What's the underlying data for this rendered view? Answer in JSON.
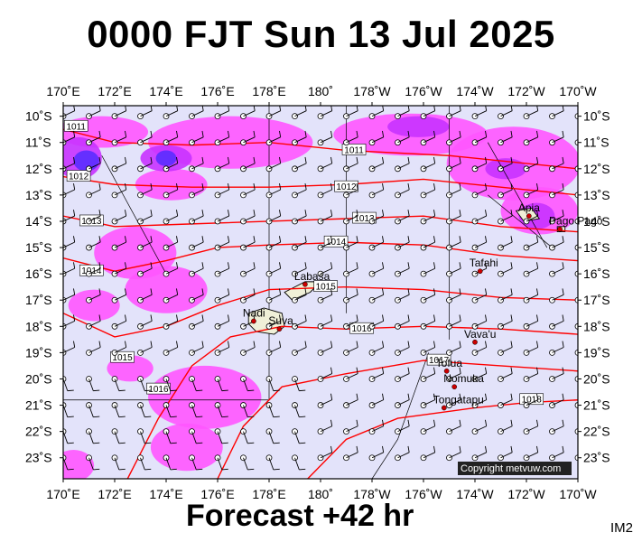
{
  "title": "0000 FJT Sun 13 Jul 2025",
  "footer": "Forecast +42 hr",
  "image_code": "IM2",
  "copyright": "Copyright metvuw.com",
  "axes": {
    "lon_labels": [
      "170˚E",
      "172˚E",
      "174˚E",
      "176˚E",
      "178˚E",
      "180˚",
      "178˚W",
      "176˚W",
      "174˚W",
      "172˚W",
      "170˚W"
    ],
    "lat_labels": [
      "10˚S",
      "11˚S",
      "12˚S",
      "13˚S",
      "14˚S",
      "15˚S",
      "16˚S",
      "17˚S",
      "18˚S",
      "19˚S",
      "20˚S",
      "21˚S",
      "22˚S",
      "23˚S"
    ]
  },
  "places": [
    {
      "name": "Apia",
      "lon": 188.1,
      "lat": -13.8
    },
    {
      "name": "Pago Pago",
      "lon": 189.3,
      "lat": -14.3
    },
    {
      "name": "Tafahi",
      "lon": 186.2,
      "lat": -15.9
    },
    {
      "name": "Labasa",
      "lon": 179.4,
      "lat": -16.4
    },
    {
      "name": "Nadi",
      "lon": 177.4,
      "lat": -17.8
    },
    {
      "name": "Suva",
      "lon": 178.4,
      "lat": -18.1
    },
    {
      "name": "Vava'u",
      "lon": 186.0,
      "lat": -18.6
    },
    {
      "name": "Tofua",
      "lon": 184.9,
      "lat": -19.7
    },
    {
      "name": "Nomuka",
      "lon": 185.2,
      "lat": -20.3
    },
    {
      "name": "Tongatapu",
      "lon": 184.8,
      "lat": -21.1
    }
  ],
  "isobars": [
    {
      "label": "1011",
      "points": [
        [
          170,
          -10.5
        ],
        [
          172,
          -11.0
        ],
        [
          175,
          -11.1
        ],
        [
          178,
          -11.0
        ],
        [
          181,
          -11.3
        ],
        [
          185,
          -11.5
        ],
        [
          188,
          -11.8
        ],
        [
          190,
          -12.0
        ]
      ],
      "labels_at": [
        [
          170.5,
          -10.4
        ],
        [
          181.3,
          -11.3
        ]
      ]
    },
    {
      "label": "1012",
      "points": [
        [
          170,
          -12.3
        ],
        [
          172,
          -12.6
        ],
        [
          175,
          -12.7
        ],
        [
          178,
          -12.7
        ],
        [
          181,
          -12.6
        ],
        [
          184,
          -12.4
        ],
        [
          187,
          -12.7
        ],
        [
          190,
          -13.0
        ]
      ],
      "labels_at": [
        [
          170.6,
          -12.3
        ],
        [
          181.0,
          -12.7
        ]
      ]
    },
    {
      "label": "1013",
      "points": [
        [
          170,
          -13.8
        ],
        [
          172,
          -14.2
        ],
        [
          175,
          -14.1
        ],
        [
          178,
          -14.0
        ],
        [
          181,
          -13.9
        ],
        [
          184,
          -13.8
        ],
        [
          187,
          -14.2
        ],
        [
          190,
          -14.4
        ]
      ],
      "labels_at": [
        [
          171.1,
          -14.0
        ],
        [
          181.7,
          -13.9
        ]
      ]
    },
    {
      "label": "1014",
      "points": [
        [
          170,
          -15.4
        ],
        [
          172,
          -15.9
        ],
        [
          174,
          -15.5
        ],
        [
          176,
          -15.0
        ],
        [
          178,
          -14.9
        ],
        [
          181,
          -14.8
        ],
        [
          184,
          -14.9
        ],
        [
          187,
          -15.3
        ],
        [
          190,
          -15.5
        ]
      ],
      "labels_at": [
        [
          171.1,
          -15.9
        ],
        [
          180.6,
          -14.8
        ]
      ]
    },
    {
      "label": "1015",
      "points": [
        [
          170,
          -17.5
        ],
        [
          172,
          -18.4
        ],
        [
          174,
          -18.0
        ],
        [
          176,
          -17.2
        ],
        [
          178,
          -16.6
        ],
        [
          181,
          -16.5
        ],
        [
          184,
          -16.6
        ],
        [
          187,
          -16.9
        ],
        [
          190,
          -17.0
        ]
      ],
      "labels_at": [
        [
          172.3,
          -19.2
        ],
        [
          180.2,
          -16.5
        ]
      ]
    },
    {
      "label": "1016",
      "points": [
        [
          172.5,
          -23.8
        ],
        [
          173.7,
          -21.5
        ],
        [
          175,
          -19.5
        ],
        [
          176.5,
          -18.4
        ],
        [
          178.5,
          -18.0
        ],
        [
          181,
          -18.1
        ],
        [
          184,
          -18.0
        ],
        [
          187,
          -18.1
        ],
        [
          190,
          -18.3
        ]
      ],
      "labels_at": [
        [
          173.7,
          -20.4
        ],
        [
          181.6,
          -18.1
        ]
      ]
    },
    {
      "label": "1017",
      "points": [
        [
          176,
          -23.8
        ],
        [
          177,
          -21.8
        ],
        [
          178.5,
          -20.3
        ],
        [
          181,
          -19.8
        ],
        [
          184,
          -19.3
        ],
        [
          187,
          -19.5
        ],
        [
          190,
          -19.7
        ]
      ],
      "labels_at": [
        [
          184.6,
          -19.3
        ]
      ]
    },
    {
      "label": "1018",
      "points": [
        [
          179.5,
          -23.8
        ],
        [
          181,
          -22.3
        ],
        [
          183,
          -21.5
        ],
        [
          186,
          -21.1
        ],
        [
          188,
          -20.9
        ],
        [
          190,
          -20.8
        ]
      ],
      "labels_at": [
        [
          188.2,
          -20.8
        ]
      ]
    }
  ],
  "rain_areas": [
    {
      "level": 1,
      "lon": 171.5,
      "lat": -10.6,
      "rx": 1.8,
      "ry": 0.6
    },
    {
      "level": 1,
      "lon": 176.5,
      "lat": -11.0,
      "rx": 3.2,
      "ry": 1.0
    },
    {
      "level": 1,
      "lon": 183.5,
      "lat": -10.7,
      "rx": 3.0,
      "ry": 0.8
    },
    {
      "level": 1,
      "lon": 187.5,
      "lat": -11.8,
      "rx": 2.6,
      "ry": 1.4
    },
    {
      "level": 1,
      "lon": 188.5,
      "lat": -13.6,
      "rx": 1.5,
      "ry": 0.9
    },
    {
      "level": 1,
      "lon": 174.2,
      "lat": -12.6,
      "rx": 1.4,
      "ry": 0.6
    },
    {
      "level": 1,
      "lon": 172.8,
      "lat": -15.2,
      "rx": 1.6,
      "ry": 1.0
    },
    {
      "level": 1,
      "lon": 171.2,
      "lat": -17.2,
      "rx": 1.0,
      "ry": 0.6
    },
    {
      "level": 1,
      "lon": 174.0,
      "lat": -16.6,
      "rx": 1.6,
      "ry": 0.9
    },
    {
      "level": 1,
      "lon": 172.6,
      "lat": -19.6,
      "rx": 0.9,
      "ry": 0.5
    },
    {
      "level": 1,
      "lon": 175.5,
      "lat": -20.7,
      "rx": 2.2,
      "ry": 1.2
    },
    {
      "level": 1,
      "lon": 174.8,
      "lat": -22.6,
      "rx": 1.4,
      "ry": 0.9
    },
    {
      "level": 1,
      "lon": 170.4,
      "lat": -23.3,
      "rx": 0.8,
      "ry": 0.6
    },
    {
      "level": 2,
      "lon": 170.6,
      "lat": -11.6,
      "rx": 0.9,
      "ry": 0.8
    },
    {
      "level": 2,
      "lon": 174.0,
      "lat": -11.6,
      "rx": 1.0,
      "ry": 0.5
    },
    {
      "level": 2,
      "lon": 183.8,
      "lat": -10.4,
      "rx": 1.2,
      "ry": 0.4
    },
    {
      "level": 2,
      "lon": 188.4,
      "lat": -13.8,
      "rx": 0.7,
      "ry": 0.5
    },
    {
      "level": 2,
      "lon": 187.2,
      "lat": -12.0,
      "rx": 0.8,
      "ry": 0.4
    },
    {
      "level": 3,
      "lon": 170.9,
      "lat": -11.7,
      "rx": 0.5,
      "ry": 0.4
    },
    {
      "level": 3,
      "lon": 174.0,
      "lat": -11.6,
      "rx": 0.4,
      "ry": 0.3
    }
  ],
  "colors": {
    "background": "#e3e3fa",
    "land": "#f0f0d8",
    "isobar": "#ff0000",
    "rain_light": "#ff55ff",
    "rain_mid": "#c832ff",
    "rain_heavy": "#5a2dff",
    "city": "#cc0000"
  }
}
